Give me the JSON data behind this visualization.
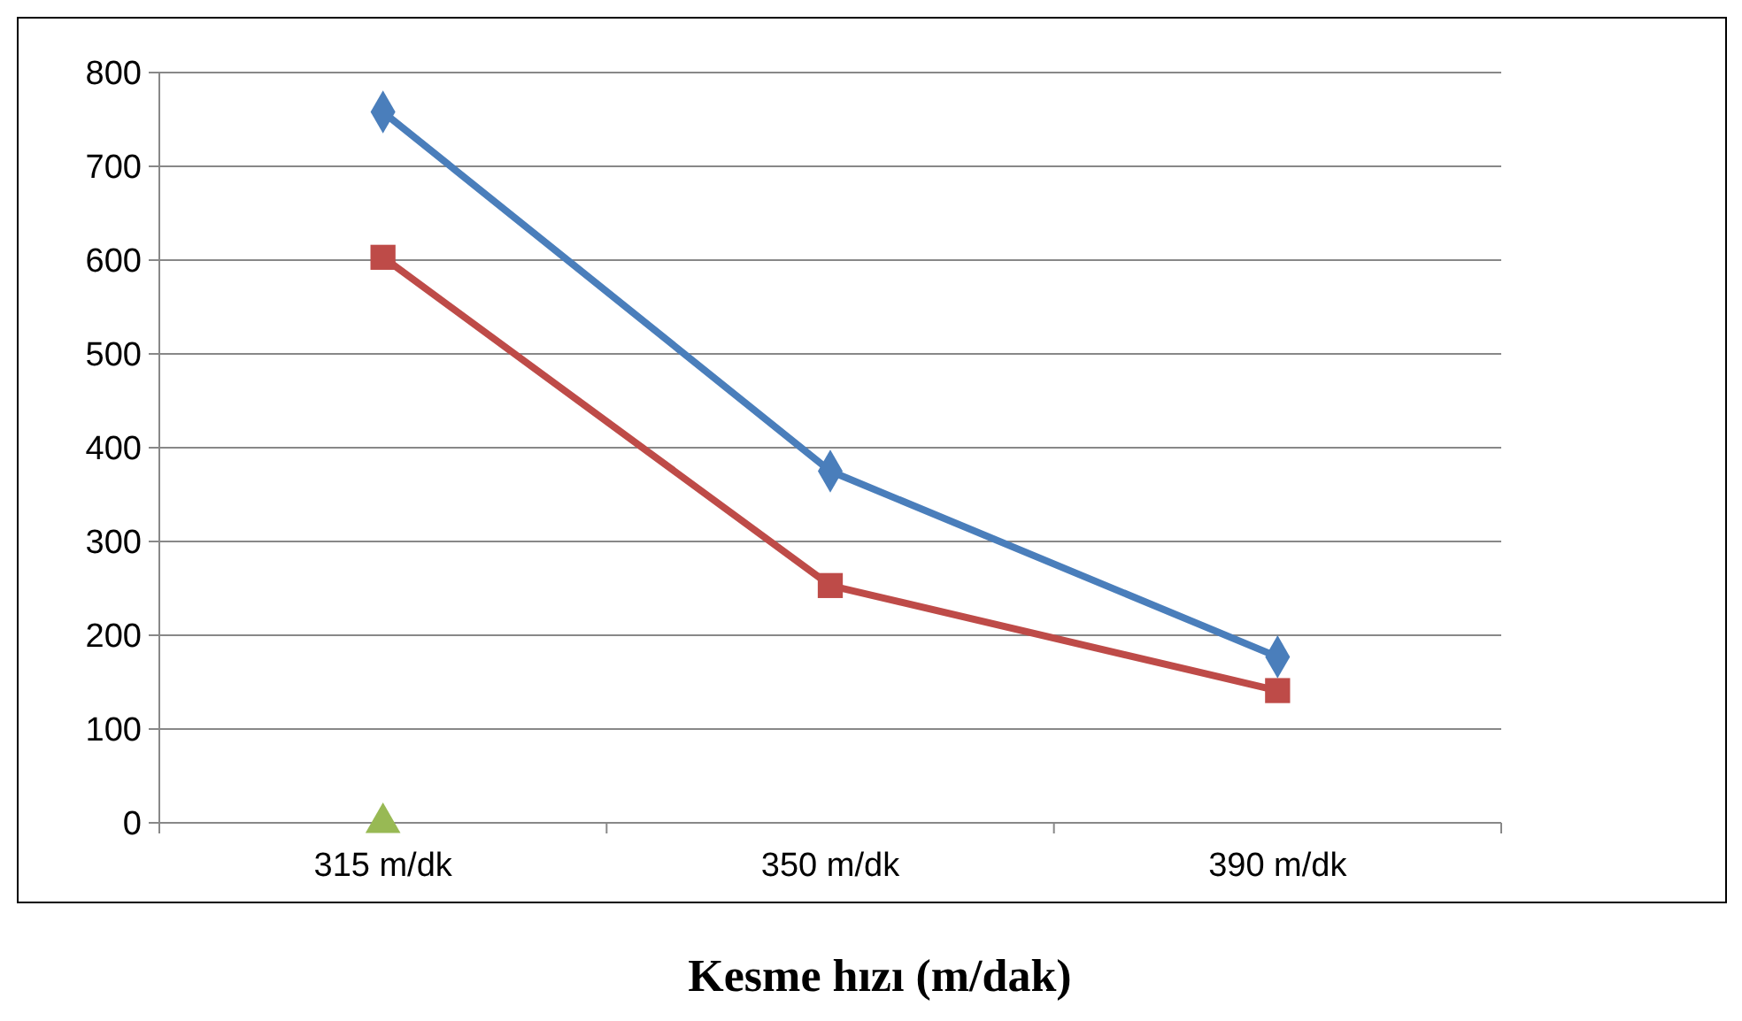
{
  "chart_data": {
    "type": "line",
    "xlabel": "Kesme hızı (m/dak)",
    "categories": [
      "315 m/dk",
      "350 m/dk",
      "390 m/dk"
    ],
    "series": [
      {
        "color": "#4a7ebb",
        "marker": "diamond",
        "values": [
          758,
          375,
          177
        ]
      },
      {
        "color": "#be4b48",
        "marker": "square",
        "values": [
          603,
          253,
          141
        ]
      },
      {
        "type": "scatter",
        "color": "#98b954",
        "marker": "triangle",
        "values": [
          0,
          null,
          null
        ]
      }
    ],
    "ylim": [
      0,
      800
    ],
    "yticks": [
      0,
      100,
      200,
      300,
      400,
      500,
      600,
      700,
      800
    ],
    "grid": "y",
    "line_style": "solid"
  }
}
